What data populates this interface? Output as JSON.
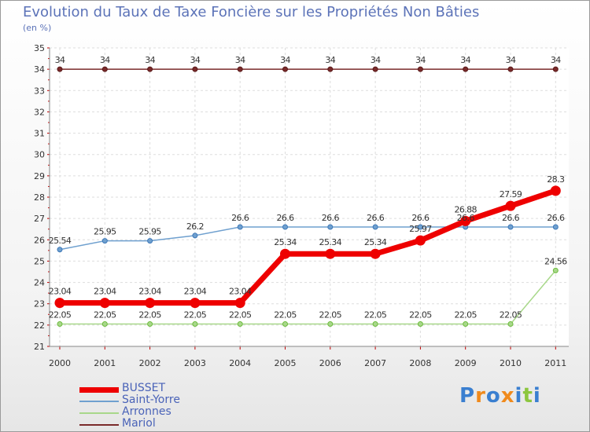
{
  "chart_data": {
    "type": "line",
    "title": "Evolution du Taux de Taxe Foncière sur les Propriétés Non Bâties",
    "ylabel": "(en %)",
    "xlabel": "",
    "ylim": [
      21,
      35
    ],
    "grid": true,
    "categories": [
      "2000",
      "2001",
      "2002",
      "2003",
      "2004",
      "2005",
      "2006",
      "2007",
      "2008",
      "2009",
      "2010",
      "2011"
    ],
    "yticks": [
      "21",
      "22",
      "23",
      "24",
      "25",
      "26",
      "27",
      "28",
      "29",
      "30",
      "31",
      "32",
      "33",
      "34",
      "35"
    ],
    "series": [
      {
        "name": "Mariol",
        "color": "#7a2a2a",
        "values": [
          34,
          34,
          34,
          34,
          34,
          34,
          34,
          34,
          34,
          34,
          34,
          34
        ],
        "labels": [
          "34",
          "34",
          "34",
          "34",
          "34",
          "34",
          "34",
          "34",
          "34",
          "34",
          "34",
          "34"
        ]
      },
      {
        "name": "Saint-Yorre",
        "color": "#6fa0cf",
        "values": [
          25.54,
          25.95,
          25.95,
          26.2,
          26.6,
          26.6,
          26.6,
          26.6,
          26.6,
          26.6,
          26.6,
          26.6
        ],
        "labels": [
          "25.54",
          "25.95",
          "25.95",
          "26.2",
          "26.6",
          "26.6",
          "26.6",
          "26.6",
          "26.6",
          "26.6",
          "26.6",
          "26.6"
        ]
      },
      {
        "name": "Arronnes",
        "color": "#a8d88a",
        "values": [
          22.05,
          22.05,
          22.05,
          22.05,
          22.05,
          22.05,
          22.05,
          22.05,
          22.05,
          22.05,
          22.05,
          24.56
        ],
        "labels": [
          "22.05",
          "22.05",
          "22.05",
          "22.05",
          "22.05",
          "22.05",
          "22.05",
          "22.05",
          "22.05",
          "22.05",
          "22.05",
          "24.56"
        ]
      },
      {
        "name": "BUSSET",
        "color": "#ee0000",
        "values": [
          23.04,
          23.04,
          23.04,
          23.04,
          23.04,
          25.34,
          25.34,
          25.34,
          25.97,
          26.88,
          27.59,
          28.3
        ],
        "labels": [
          "23.04",
          "23.04",
          "23.04",
          "23.04",
          "23.04",
          "25.34",
          "25.34",
          "25.34",
          "25.97",
          "26.88",
          "27.59",
          "28.3"
        ]
      }
    ],
    "legend": [
      {
        "name": "BUSSET",
        "color": "#ee0000",
        "thickness": "thick"
      },
      {
        "name": "Saint-Yorre",
        "color": "#6fa0cf",
        "thickness": "thin"
      },
      {
        "name": "Arronnes",
        "color": "#a8d88a",
        "thickness": "thin"
      },
      {
        "name": "Mariol",
        "color": "#7a2a2a",
        "thickness": "thin"
      }
    ]
  },
  "logo": {
    "text": "Proxiti",
    "letters": [
      {
        "char": "P",
        "color": "#3a7fd0"
      },
      {
        "char": "r",
        "color": "#f08a1c"
      },
      {
        "char": "o",
        "color": "#3a7fd0"
      },
      {
        "char": "x",
        "color": "#f08a1c"
      },
      {
        "char": "i",
        "color": "#3a7fd0"
      },
      {
        "char": "t",
        "color": "#8cc63f"
      },
      {
        "char": "i",
        "color": "#3a7fd0"
      }
    ]
  }
}
